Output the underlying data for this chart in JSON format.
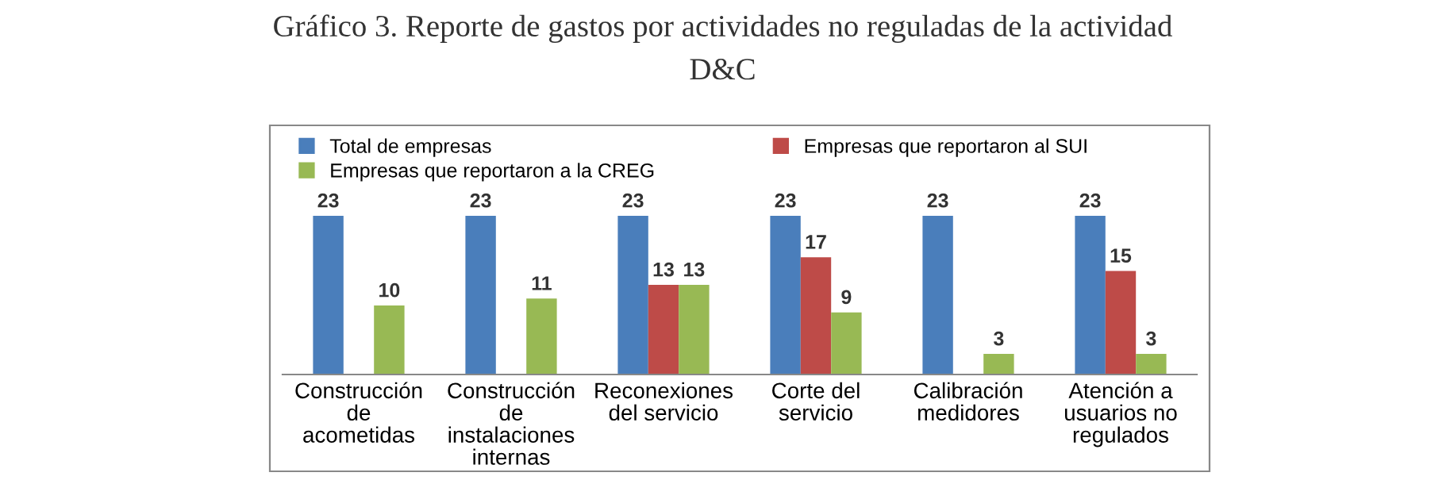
{
  "chart_data": {
    "type": "bar",
    "title": "Gráfico 3. Reporte de gastos por actividades no reguladas de la actividad\nD&C",
    "categories": [
      "Construcción\nde\nacometidas",
      "Construcción\nde\ninstalaciones\ninternas",
      "Reconexiones\ndel servicio",
      "Corte del\nservicio",
      "Calibración\nmedidores",
      "Atención a\nusuarios no\nregulados"
    ],
    "series": [
      {
        "name": "Total de empresas",
        "color": "#4a7ebb",
        "values": [
          23,
          23,
          23,
          23,
          23,
          23
        ]
      },
      {
        "name": "Empresas que reportaron al SUI",
        "color": "#be4b48",
        "values": [
          null,
          null,
          13,
          17,
          null,
          15
        ]
      },
      {
        "name": "Empresas que reportaron a la CREG",
        "color": "#98b954",
        "values": [
          10,
          11,
          13,
          9,
          3,
          3
        ]
      }
    ],
    "data_labels": true,
    "legend": "top",
    "grid": false
  }
}
